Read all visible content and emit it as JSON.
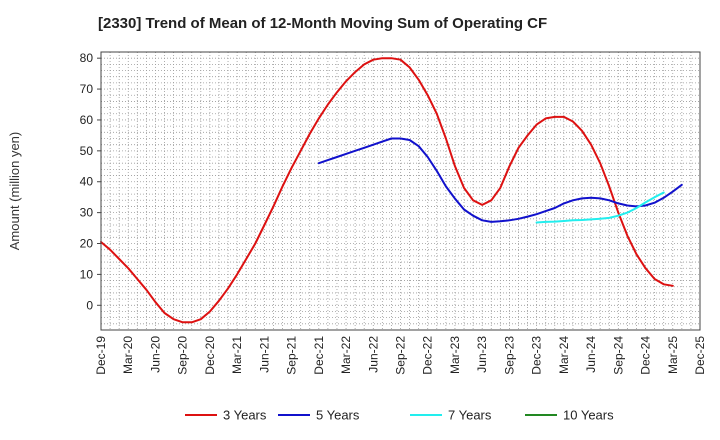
{
  "chart_data": {
    "type": "line",
    "title": "[2330]  Trend of Mean of 12-Month Moving Sum of Operating CF",
    "xlabel": "",
    "ylabel": "Amount (million yen)",
    "ylim": [
      -8,
      82
    ],
    "yticks": [
      0,
      10,
      20,
      30,
      40,
      50,
      60,
      70,
      80
    ],
    "x_ticks": [
      "Dec-19",
      "Mar-20",
      "Jun-20",
      "Sep-20",
      "Dec-20",
      "Mar-21",
      "Jun-21",
      "Sep-21",
      "Dec-21",
      "Mar-22",
      "Jun-22",
      "Sep-22",
      "Dec-22",
      "Mar-23",
      "Jun-23",
      "Sep-23",
      "Dec-23",
      "Mar-24",
      "Jun-24",
      "Sep-24",
      "Dec-24",
      "Mar-25",
      "Dec-25"
    ],
    "grid": true,
    "legend_position": "bottom",
    "series": [
      {
        "name": "3 Years",
        "color": "#dd1111",
        "start_month": 0,
        "values": [
          20.5,
          18,
          15,
          12,
          8.5,
          5,
          1,
          -2.5,
          -4.5,
          -5.5,
          -5.5,
          -4.5,
          -2,
          1.5,
          5.5,
          10,
          15,
          20,
          26,
          32,
          38.5,
          44.5,
          50,
          55.5,
          60.5,
          65,
          69,
          72.5,
          75.5,
          78,
          79.5,
          80,
          80,
          79.5,
          77,
          73,
          68,
          62,
          54,
          45,
          38,
          34,
          32.5,
          34,
          38,
          45,
          51,
          55,
          58.5,
          60.5,
          61,
          61,
          59.5,
          56.5,
          52,
          46,
          38.5,
          30,
          22.5,
          16.5,
          12,
          8.5,
          6.8,
          6.3
        ]
      },
      {
        "name": "5 Years",
        "color": "#1111cc",
        "start_month": 24,
        "values": [
          46,
          47,
          48,
          49,
          50,
          51,
          52,
          53,
          54,
          54,
          53.5,
          51.5,
          48,
          43.5,
          38.5,
          34.5,
          31,
          29,
          27.5,
          27,
          27.2,
          27.5,
          28,
          28.7,
          29.5,
          30.5,
          31.5,
          33,
          34,
          34.6,
          34.8,
          34.6,
          34,
          33,
          32.3,
          32,
          32.3,
          33.2,
          34.8,
          36.8,
          39
        ]
      },
      {
        "name": "7 Years",
        "color": "#22eeee",
        "start_month": 48,
        "values": [
          26.8,
          27,
          27.1,
          27.3,
          27.5,
          27.6,
          27.8,
          28,
          28.3,
          29,
          30,
          31.5,
          33.3,
          35,
          36.5
        ]
      },
      {
        "name": "10 Years",
        "color": "#228822",
        "start_month": 0,
        "values": []
      }
    ]
  }
}
